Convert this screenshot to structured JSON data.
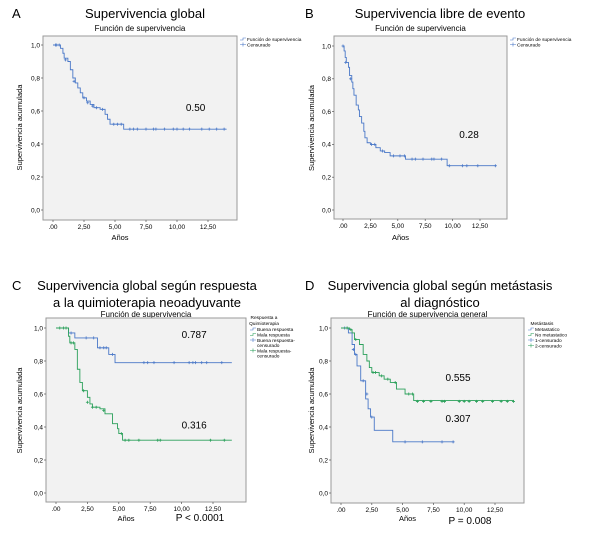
{
  "chart_data": [
    {
      "type": "line",
      "panel": "A",
      "title": "Supervivencia global",
      "subtitle": "Función de supervivencia",
      "xlabel": "Años",
      "ylabel": "Supervivencia acumulada",
      "xlim": [
        0,
        14
      ],
      "ylim": [
        0,
        1.0
      ],
      "xticks": [
        ".00",
        "2,50",
        "5,00",
        "7,50",
        "10,00",
        "12,50"
      ],
      "yticks": [
        "0,0",
        "0,2",
        "0,4",
        "0,6",
        "0,8",
        "1,0"
      ],
      "legend": [
        "Función de supervivencia",
        "Censurado"
      ],
      "legend_position": "top-right-outside",
      "annotation": "0.50",
      "annotation_at": [
        11.5,
        0.6
      ],
      "pvalue": "",
      "series": [
        {
          "name": "Función de supervivencia",
          "color": "#4a78c8",
          "steps": [
            [
              0,
              1.0
            ],
            [
              0.4,
              1.0
            ],
            [
              0.6,
              0.98
            ],
            [
              0.8,
              0.95
            ],
            [
              0.9,
              0.92
            ],
            [
              1.2,
              0.9
            ],
            [
              1.4,
              0.85
            ],
            [
              1.6,
              0.8
            ],
            [
              1.8,
              0.77
            ],
            [
              2.0,
              0.74
            ],
            [
              2.2,
              0.71
            ],
            [
              2.4,
              0.68
            ],
            [
              2.7,
              0.66
            ],
            [
              3.0,
              0.64
            ],
            [
              3.3,
              0.62
            ],
            [
              3.8,
              0.61
            ],
            [
              4.2,
              0.58
            ],
            [
              4.4,
              0.55
            ],
            [
              4.6,
              0.52
            ],
            [
              5.7,
              0.49
            ],
            [
              14,
              0.49
            ]
          ],
          "censored": [
            [
              0.2,
              1.0
            ],
            [
              0.3,
              1.0
            ],
            [
              0.5,
              1.0
            ],
            [
              1.0,
              0.91
            ],
            [
              1.7,
              0.78
            ],
            [
              2.5,
              0.68
            ],
            [
              2.8,
              0.65
            ],
            [
              3.2,
              0.63
            ],
            [
              3.5,
              0.62
            ],
            [
              4.0,
              0.61
            ],
            [
              4.9,
              0.52
            ],
            [
              5.2,
              0.52
            ],
            [
              5.5,
              0.52
            ],
            [
              6.2,
              0.49
            ],
            [
              6.5,
              0.49
            ],
            [
              6.8,
              0.49
            ],
            [
              7.5,
              0.49
            ],
            [
              8.1,
              0.49
            ],
            [
              8.3,
              0.49
            ],
            [
              9.0,
              0.49
            ],
            [
              9.7,
              0.49
            ],
            [
              10.0,
              0.49
            ],
            [
              10.5,
              0.49
            ],
            [
              11.0,
              0.49
            ],
            [
              12.0,
              0.49
            ],
            [
              12.6,
              0.49
            ],
            [
              13.2,
              0.49
            ],
            [
              13.8,
              0.49
            ]
          ]
        }
      ]
    },
    {
      "type": "line",
      "panel": "B",
      "title": "Supervivencia libre de evento",
      "subtitle": "Función de supervivencia",
      "xlabel": "Años",
      "ylabel": "Supervivencia acumulada",
      "xlim": [
        0,
        14
      ],
      "ylim": [
        0,
        1.0
      ],
      "xticks": [
        ".00",
        "2,50",
        "5,00",
        "7,50",
        "10,00",
        "12,50"
      ],
      "yticks": [
        "0,0",
        "0,2",
        "0,4",
        "0,6",
        "0,8",
        "1,0"
      ],
      "legend": [
        "Función de supervivencia",
        "Censurado"
      ],
      "legend_position": "top-right-outside",
      "annotation": "0.28",
      "annotation_at": [
        11.5,
        0.44
      ],
      "pvalue": "",
      "series": [
        {
          "name": "Función de supervivencia",
          "color": "#4a78c8",
          "steps": [
            [
              0,
              1.0
            ],
            [
              0.1,
              0.97
            ],
            [
              0.2,
              0.93
            ],
            [
              0.3,
              0.9
            ],
            [
              0.5,
              0.87
            ],
            [
              0.6,
              0.82
            ],
            [
              0.8,
              0.78
            ],
            [
              0.9,
              0.74
            ],
            [
              1.0,
              0.7
            ],
            [
              1.2,
              0.64
            ],
            [
              1.4,
              0.61
            ],
            [
              1.5,
              0.57
            ],
            [
              1.7,
              0.53
            ],
            [
              1.9,
              0.48
            ],
            [
              2.0,
              0.44
            ],
            [
              2.2,
              0.41
            ],
            [
              2.5,
              0.4
            ],
            [
              3.0,
              0.38
            ],
            [
              3.4,
              0.36
            ],
            [
              3.8,
              0.35
            ],
            [
              4.3,
              0.33
            ],
            [
              5.7,
              0.31
            ],
            [
              9.5,
              0.27
            ],
            [
              14,
              0.27
            ]
          ],
          "censored": [
            [
              0,
              1.0
            ],
            [
              0.25,
              0.9
            ],
            [
              0.7,
              0.8
            ],
            [
              2.6,
              0.4
            ],
            [
              2.9,
              0.4
            ],
            [
              3.6,
              0.36
            ],
            [
              4.6,
              0.33
            ],
            [
              5.2,
              0.33
            ],
            [
              5.6,
              0.33
            ],
            [
              6.3,
              0.31
            ],
            [
              6.6,
              0.31
            ],
            [
              7.3,
              0.31
            ],
            [
              8.1,
              0.31
            ],
            [
              8.3,
              0.31
            ],
            [
              9.0,
              0.31
            ],
            [
              9.7,
              0.27
            ],
            [
              10.9,
              0.27
            ],
            [
              11.3,
              0.27
            ],
            [
              12.3,
              0.27
            ],
            [
              13.9,
              0.27
            ]
          ]
        }
      ]
    },
    {
      "type": "line",
      "panel": "C",
      "title": "Supervivencia global según respuesta a la quimioterapia neoadyuvante",
      "title_lines": [
        "Supervivencia global según respuesta",
        "a la quimioterapia neoadyuvante"
      ],
      "subtitle": "Función de supervivencia",
      "xlabel": "Años",
      "ylabel": "Supervivencia acumulada",
      "xlim": [
        0,
        14
      ],
      "ylim": [
        0,
        1.0
      ],
      "xticks": [
        ".00",
        "2,50",
        "5,00",
        "7,50",
        "10,00",
        "12,50"
      ],
      "yticks": [
        "0,0",
        "0,2",
        "0,4",
        "0,6",
        "0,8",
        "1,0"
      ],
      "legend_title": [
        "Respuesta a",
        "Quimioterapia"
      ],
      "legend": [
        "Buena respuesta",
        "Mala respuesta",
        "Buena respuesta-censurado",
        "Mala respuesta-censurado"
      ],
      "legend_position": "top-right-outside",
      "annotations": [
        {
          "text": "0.787",
          "at": [
            11.0,
            0.94
          ]
        },
        {
          "text": "0.316",
          "at": [
            11.0,
            0.39
          ]
        }
      ],
      "pvalue": "P < 0.0001",
      "series": [
        {
          "name": "Buena respuesta",
          "color": "#4a78c8",
          "steps": [
            [
              0,
              1.0
            ],
            [
              1.0,
              0.97
            ],
            [
              1.5,
              0.94
            ],
            [
              3.3,
              0.88
            ],
            [
              4.2,
              0.84
            ],
            [
              4.7,
              0.79
            ],
            [
              14,
              0.79
            ]
          ],
          "censored": [
            [
              1.2,
              0.97
            ],
            [
              2.4,
              0.94
            ],
            [
              3.0,
              0.94
            ],
            [
              3.5,
              0.88
            ],
            [
              3.8,
              0.88
            ],
            [
              4.0,
              0.88
            ],
            [
              4.5,
              0.84
            ],
            [
              7.0,
              0.79
            ],
            [
              7.3,
              0.79
            ],
            [
              7.8,
              0.79
            ],
            [
              9.4,
              0.79
            ],
            [
              10.6,
              0.79
            ],
            [
              10.9,
              0.79
            ],
            [
              11.1,
              0.79
            ],
            [
              11.6,
              0.79
            ],
            [
              12.0,
              0.79
            ],
            [
              13.2,
              0.79
            ]
          ]
        },
        {
          "name": "Mala respuesta",
          "color": "#2aa05a",
          "steps": [
            [
              0,
              1.0
            ],
            [
              1.0,
              0.95
            ],
            [
              1.1,
              0.91
            ],
            [
              1.5,
              0.87
            ],
            [
              1.7,
              0.75
            ],
            [
              1.9,
              0.67
            ],
            [
              2.1,
              0.62
            ],
            [
              2.5,
              0.58
            ],
            [
              2.7,
              0.54
            ],
            [
              2.9,
              0.52
            ],
            [
              3.5,
              0.51
            ],
            [
              3.9,
              0.48
            ],
            [
              4.5,
              0.42
            ],
            [
              4.9,
              0.39
            ],
            [
              5.0,
              0.36
            ],
            [
              5.3,
              0.32
            ],
            [
              14,
              0.32
            ]
          ],
          "censored": [
            [
              0.3,
              1.0
            ],
            [
              0.6,
              1.0
            ],
            [
              0.8,
              1.0
            ],
            [
              1.2,
              0.91
            ],
            [
              1.4,
              0.91
            ],
            [
              2.2,
              0.62
            ],
            [
              2.5,
              0.55
            ],
            [
              2.9,
              0.52
            ],
            [
              3.2,
              0.52
            ],
            [
              3.8,
              0.5
            ],
            [
              5.2,
              0.36
            ],
            [
              5.5,
              0.32
            ],
            [
              5.8,
              0.32
            ],
            [
              6.6,
              0.32
            ],
            [
              8.1,
              0.32
            ],
            [
              8.3,
              0.32
            ],
            [
              12.3,
              0.32
            ],
            [
              13.4,
              0.32
            ]
          ]
        }
      ]
    },
    {
      "type": "line",
      "panel": "D",
      "title": "Supervivencia global según metástasis al diagnóstico",
      "title_lines": [
        "Supervivencia global según metástasis",
        "al diagnóstico"
      ],
      "subtitle": "Función de supervivencia general",
      "xlabel": "Años",
      "ylabel": "Supervivencia acumulada",
      "xlim": [
        0,
        14
      ],
      "ylim": [
        0,
        1.0
      ],
      "xticks": [
        ".00",
        "2,50",
        "5,00",
        "7,50",
        "10,00",
        "12,50"
      ],
      "yticks": [
        "0,0",
        "0,2",
        "0,4",
        "0,6",
        "0,8",
        "1,0"
      ],
      "legend_title": [
        "Metástasis"
      ],
      "legend": [
        "Metastatico",
        "No metastatico",
        "1-censurado",
        "2-censurado"
      ],
      "legend_position": "top-right-outside",
      "annotations": [
        {
          "text": "0.555",
          "at": [
            9.5,
            0.68
          ]
        },
        {
          "text": "0.307",
          "at": [
            9.5,
            0.43
          ]
        }
      ],
      "pvalue": "P = 0.008",
      "series": [
        {
          "name": "Metastatico",
          "color": "#4a78c8",
          "steps": [
            [
              0,
              1.0
            ],
            [
              0.6,
              0.97
            ],
            [
              0.9,
              0.9
            ],
            [
              1.1,
              0.84
            ],
            [
              1.3,
              0.77
            ],
            [
              1.6,
              0.68
            ],
            [
              2.0,
              0.57
            ],
            [
              2.2,
              0.51
            ],
            [
              2.4,
              0.46
            ],
            [
              2.7,
              0.38
            ],
            [
              4.2,
              0.31
            ],
            [
              9.2,
              0.31
            ]
          ],
          "censored": [
            [
              0.3,
              1.0
            ],
            [
              0.5,
              1.0
            ],
            [
              1.0,
              0.87
            ],
            [
              1.2,
              0.84
            ],
            [
              1.8,
              0.68
            ],
            [
              2.1,
              0.6
            ],
            [
              2.5,
              0.46
            ],
            [
              5.2,
              0.31
            ],
            [
              6.6,
              0.31
            ],
            [
              8.2,
              0.31
            ],
            [
              9.1,
              0.31
            ]
          ]
        },
        {
          "name": "No metastatico",
          "color": "#2aa05a",
          "steps": [
            [
              0,
              1.0
            ],
            [
              0.7,
              0.99
            ],
            [
              0.9,
              0.97
            ],
            [
              1.1,
              0.93
            ],
            [
              1.5,
              0.9
            ],
            [
              1.8,
              0.84
            ],
            [
              2.1,
              0.8
            ],
            [
              2.3,
              0.76
            ],
            [
              2.5,
              0.73
            ],
            [
              3.1,
              0.71
            ],
            [
              3.5,
              0.69
            ],
            [
              4.0,
              0.67
            ],
            [
              4.5,
              0.63
            ],
            [
              5.2,
              0.6
            ],
            [
              5.9,
              0.56
            ],
            [
              14,
              0.555
            ]
          ],
          "censored": [
            [
              0.5,
              1.0
            ],
            [
              0.8,
              0.99
            ],
            [
              1.2,
              0.93
            ],
            [
              2.6,
              0.73
            ],
            [
              2.8,
              0.73
            ],
            [
              3.3,
              0.71
            ],
            [
              3.8,
              0.69
            ],
            [
              4.4,
              0.67
            ],
            [
              5.5,
              0.6
            ],
            [
              5.8,
              0.6
            ],
            [
              6.2,
              0.555
            ],
            [
              6.7,
              0.555
            ],
            [
              7.3,
              0.555
            ],
            [
              8.2,
              0.555
            ],
            [
              8.4,
              0.555
            ],
            [
              9.6,
              0.555
            ],
            [
              10.0,
              0.555
            ],
            [
              10.4,
              0.555
            ],
            [
              11.0,
              0.555
            ],
            [
              11.5,
              0.555
            ],
            [
              12.3,
              0.555
            ],
            [
              13.0,
              0.555
            ],
            [
              13.5,
              0.555
            ],
            [
              14.0,
              0.555
            ]
          ]
        }
      ]
    }
  ]
}
